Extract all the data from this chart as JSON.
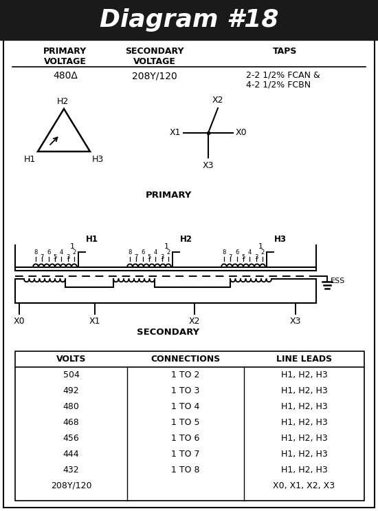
{
  "title": "Diagram #18",
  "title_bg": "#1a1a1a",
  "title_color": "#ffffff",
  "title_fontsize": 26,
  "primary_voltage": "480Δ",
  "secondary_voltage": "208Y/120",
  "taps_line1": "2-2 1/2% FCAN &",
  "taps_line2": "4-2 1/2% FCBN",
  "table_headers": [
    "VOLTS",
    "CONNECTIONS",
    "LINE LEADS"
  ],
  "table_rows": [
    [
      "504",
      "1 TO 2",
      "H1, H2, H3"
    ],
    [
      "492",
      "1 TO 3",
      "H1, H2, H3"
    ],
    [
      "480",
      "1 TO 4",
      "H1, H2, H3"
    ],
    [
      "468",
      "1 TO 5",
      "H1, H2, H3"
    ],
    [
      "456",
      "1 TO 6",
      "H1, H2, H3"
    ],
    [
      "444",
      "1 TO 7",
      "H1, H2, H3"
    ],
    [
      "432",
      "1 TO 8",
      "H1, H2, H3"
    ],
    [
      "208Y/120",
      "",
      "X0, X1, X2, X3"
    ]
  ],
  "bg_color": "#ffffff",
  "line_color": "#000000"
}
